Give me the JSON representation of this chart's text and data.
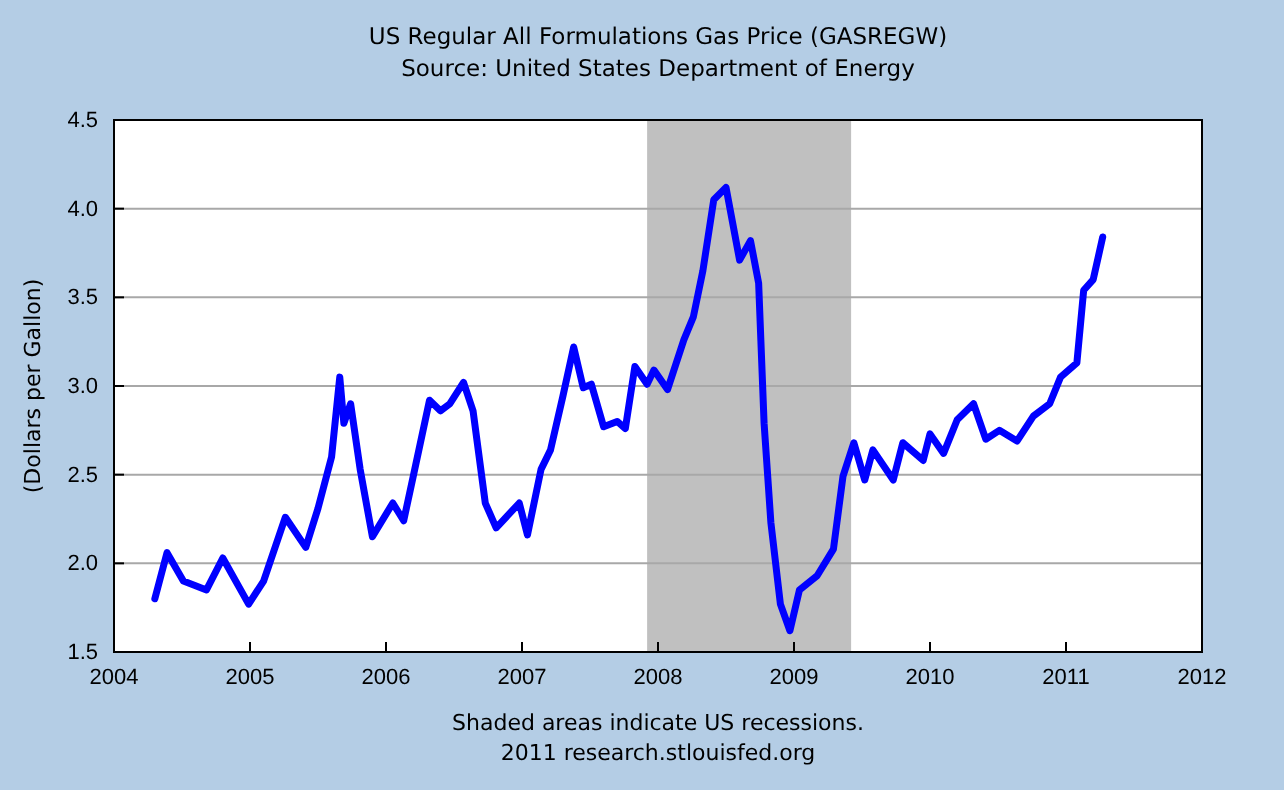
{
  "chart_data": {
    "type": "line",
    "title": "US Regular All Formulations Gas Price (GASREGW)",
    "subtitle": "Source: United States Department of Energy",
    "ylabel": "(Dollars per Gallon)",
    "annotations": [
      "Shaded areas indicate US recessions.",
      "2011 research.stlouisfed.org"
    ],
    "xlim": [
      2004,
      2012
    ],
    "xticks": [
      2004,
      2005,
      2006,
      2007,
      2008,
      2009,
      2010,
      2011,
      2012
    ],
    "ylim": [
      1.5,
      4.5
    ],
    "yticks": [
      {
        "value": 1.5,
        "label": "1.5"
      },
      {
        "value": 2,
        "label": "2.0"
      },
      {
        "value": 2.5,
        "label": "2.5"
      },
      {
        "value": 3,
        "label": "3.0"
      },
      {
        "value": 3.5,
        "label": "3.5"
      },
      {
        "value": 4,
        "label": "4.0"
      },
      {
        "value": 4.5,
        "label": "4.5"
      }
    ],
    "grid": "y",
    "marker": "none",
    "line_style": "solid",
    "bands": [
      {
        "axis": "x",
        "from": 2007.92,
        "to": 2009.42,
        "color": "#c0c0c0"
      }
    ],
    "series": [
      {
        "color": "#0000ff",
        "x": [
          2004.3,
          2004.39,
          2004.51,
          2004.68,
          2004.8,
          2004.99,
          2005.1,
          2005.26,
          2005.41,
          2005.5,
          2005.6,
          2005.66,
          2005.69,
          2005.74,
          2005.81,
          2005.9,
          2006.05,
          2006.13,
          2006.2,
          2006.32,
          2006.4,
          2006.47,
          2006.57,
          2006.64,
          2006.73,
          2006.81,
          2006.98,
          2007.04,
          2007.14,
          2007.21,
          2007.3,
          2007.38,
          2007.45,
          2007.51,
          2007.6,
          2007.7,
          2007.76,
          2007.83,
          2007.92,
          2007.97,
          2008.07,
          2008.19,
          2008.26,
          2008.33,
          2008.41,
          2008.5,
          2008.6,
          2008.68,
          2008.74,
          2008.78,
          2008.83,
          2008.9,
          2008.97,
          2009.04,
          2009.17,
          2009.29,
          2009.36,
          2009.44,
          2009.52,
          2009.58,
          2009.73,
          2009.8,
          2009.95,
          2010.0,
          2010.1,
          2010.2,
          2010.32,
          2010.41,
          2010.51,
          2010.64,
          2010.76,
          2010.88,
          2010.96,
          2011.08,
          2011.13,
          2011.2,
          2011.27
        ],
        "values": [
          1.8,
          2.06,
          1.9,
          1.85,
          2.03,
          1.77,
          1.9,
          2.26,
          2.09,
          2.31,
          2.6,
          3.05,
          2.79,
          2.9,
          2.53,
          2.15,
          2.34,
          2.24,
          2.49,
          2.92,
          2.86,
          2.9,
          3.02,
          2.86,
          2.34,
          2.2,
          2.34,
          2.16,
          2.53,
          2.64,
          2.94,
          3.22,
          2.99,
          3.01,
          2.77,
          2.8,
          2.76,
          3.11,
          3.01,
          3.09,
          2.98,
          3.26,
          3.39,
          3.65,
          4.05,
          4.12,
          3.71,
          3.82,
          3.58,
          2.79,
          2.23,
          1.77,
          1.62,
          1.85,
          1.93,
          2.08,
          2.49,
          2.68,
          2.47,
          2.64,
          2.47,
          2.68,
          2.58,
          2.73,
          2.62,
          2.81,
          2.9,
          2.7,
          2.75,
          2.69,
          2.83,
          2.9,
          3.05,
          3.13,
          3.54,
          3.6,
          3.84
        ]
      }
    ]
  }
}
